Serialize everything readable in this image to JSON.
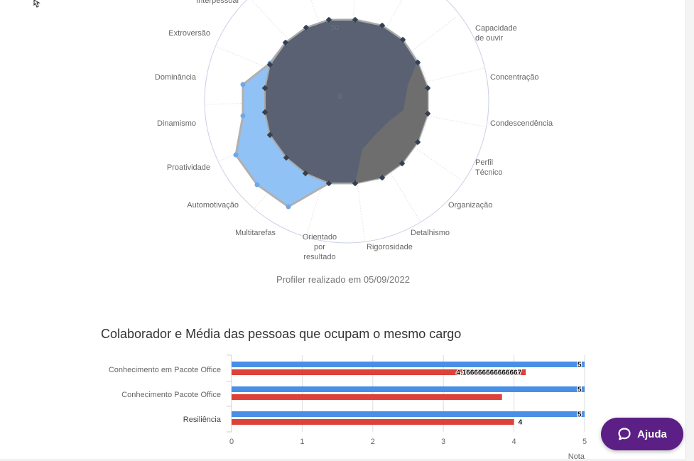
{
  "radar": {
    "labels": [
      "Interpessoal",
      "Capacidade de ouvir",
      "Concentração",
      "Condescendência",
      "Perfil Técnico",
      "Organização",
      "Detalhismo",
      "Rigorosidade",
      "Orientado por resultado",
      "Multitarefas",
      "Automotivação",
      "Proatividade",
      "Dinamismo",
      "Dominância",
      "Extroversão"
    ],
    "center_label": "0",
    "ring_label": "50",
    "series_colors": {
      "collaborator": "#90c2f5",
      "benchmark": "#5a6172",
      "benchmark_band": "#6e6e6e",
      "outline": "#b0b0b0"
    },
    "caption": "Profiler realizado em 05/09/2022"
  },
  "bar_section": {
    "title": "Colaborador e Média das pessoas que ocupam o mesmo cargo"
  },
  "chart_data": {
    "type": "bar",
    "orientation": "horizontal",
    "categories": [
      "Conhecimento em Pacote Office",
      "Conhecimento Pacote Office",
      "Resiliência"
    ],
    "series": [
      {
        "values": [
          5,
          5,
          5
        ],
        "color": "#4a8fe6"
      },
      {
        "values": [
          4.166666666666667,
          3.83,
          4
        ],
        "color": "#dd4139"
      }
    ],
    "data_labels": [
      "5",
      "4.166666666666667",
      "5",
      "",
      "5",
      "4"
    ],
    "x_ticks": [
      "0",
      "1",
      "2",
      "3",
      "4",
      "5"
    ],
    "xlabel": "Nota",
    "xlim": [
      0,
      5
    ],
    "grid": true
  },
  "help_button": {
    "label": "Ajuda",
    "icon": "chat-bubble-icon"
  }
}
